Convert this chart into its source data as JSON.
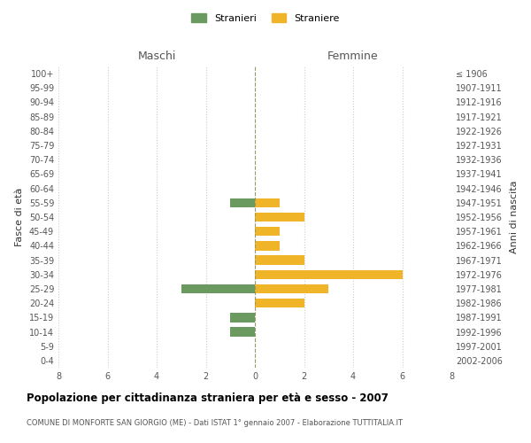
{
  "age_groups": [
    "100+",
    "95-99",
    "90-94",
    "85-89",
    "80-84",
    "75-79",
    "70-74",
    "65-69",
    "60-64",
    "55-59",
    "50-54",
    "45-49",
    "40-44",
    "35-39",
    "30-34",
    "25-29",
    "20-24",
    "15-19",
    "10-14",
    "5-9",
    "0-4"
  ],
  "birth_years": [
    "≤ 1906",
    "1907-1911",
    "1912-1916",
    "1917-1921",
    "1922-1926",
    "1927-1931",
    "1932-1936",
    "1937-1941",
    "1942-1946",
    "1947-1951",
    "1952-1956",
    "1957-1961",
    "1962-1966",
    "1967-1971",
    "1972-1976",
    "1977-1981",
    "1982-1986",
    "1987-1991",
    "1992-1996",
    "1997-2001",
    "2002-2006"
  ],
  "maschi_stranieri": [
    0,
    0,
    0,
    0,
    0,
    0,
    0,
    0,
    0,
    1,
    0,
    0,
    0,
    0,
    0,
    3,
    0,
    1,
    1,
    0,
    0
  ],
  "femmine_straniere": [
    0,
    0,
    0,
    0,
    0,
    0,
    0,
    0,
    0,
    1,
    2,
    1,
    1,
    2,
    6,
    3,
    2,
    0,
    0,
    0,
    0
  ],
  "color_maschi": "#6a9a5f",
  "color_femmine": "#f0b429",
  "xlim": 8,
  "title": "Popolazione per cittadinanza straniera per età e sesso - 2007",
  "subtitle": "COMUNE DI MONFORTE SAN GIORGIO (ME) - Dati ISTAT 1° gennaio 2007 - Elaborazione TUTTITALIA.IT",
  "ylabel_left": "Fasce di età",
  "ylabel_right": "Anni di nascita",
  "legend_maschi": "Stranieri",
  "legend_femmine": "Straniere",
  "maschi_label": "Maschi",
  "femmine_label": "Femmine",
  "background_color": "#ffffff",
  "grid_color": "#cccccc",
  "bar_height": 0.65
}
